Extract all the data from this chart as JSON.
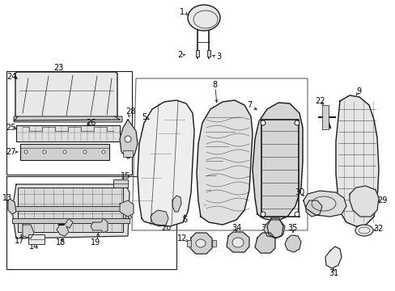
{
  "bg_color": "#ffffff",
  "lc": "#1a1a1a",
  "gc": "#555555",
  "fill_light": "#e8e8e8",
  "fill_mid": "#d0d0d0",
  "fill_dark": "#b0b0b0",
  "box_line": "#444444",
  "figsize": [
    4.89,
    3.6
  ],
  "dpi": 100
}
